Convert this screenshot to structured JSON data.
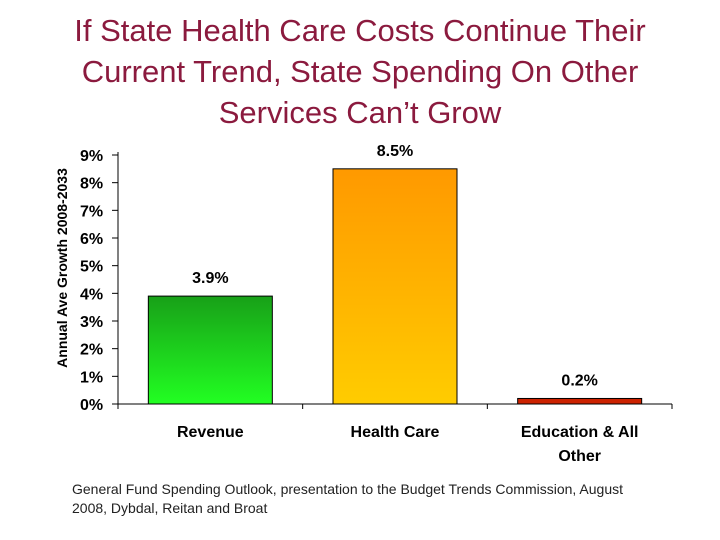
{
  "title": "If State Health Care Costs Continue Their Current Trend, State Spending On Other Services Can’t Grow",
  "source_note": "General Fund Spending Outlook, presentation to the Budget Trends Commission, August 2008, Dybdal, Reitan and Broat",
  "chart_data": {
    "type": "bar",
    "title": "If State Health Care Costs Continue Their Current Trend, State Spending On Other Services Can’t Grow",
    "xlabel": "",
    "ylabel": "Annual Ave Growth 2008-2033",
    "ylim": [
      0,
      9
    ],
    "yticks": [
      "0%",
      "1%",
      "2%",
      "3%",
      "4%",
      "5%",
      "6%",
      "7%",
      "8%",
      "9%"
    ],
    "categories": [
      "Revenue",
      "Health Care",
      "Education & All Other"
    ],
    "values": [
      3.9,
      8.5,
      0.2
    ],
    "data_labels": [
      "3.9%",
      "8.5%",
      "0.2%"
    ],
    "grid": false,
    "colors": {
      "revenue_top": "#18a018",
      "revenue_bottom": "#22ff22",
      "health_top": "#ff9900",
      "health_bottom": "#ffcc00",
      "other": "#cc2200"
    }
  }
}
